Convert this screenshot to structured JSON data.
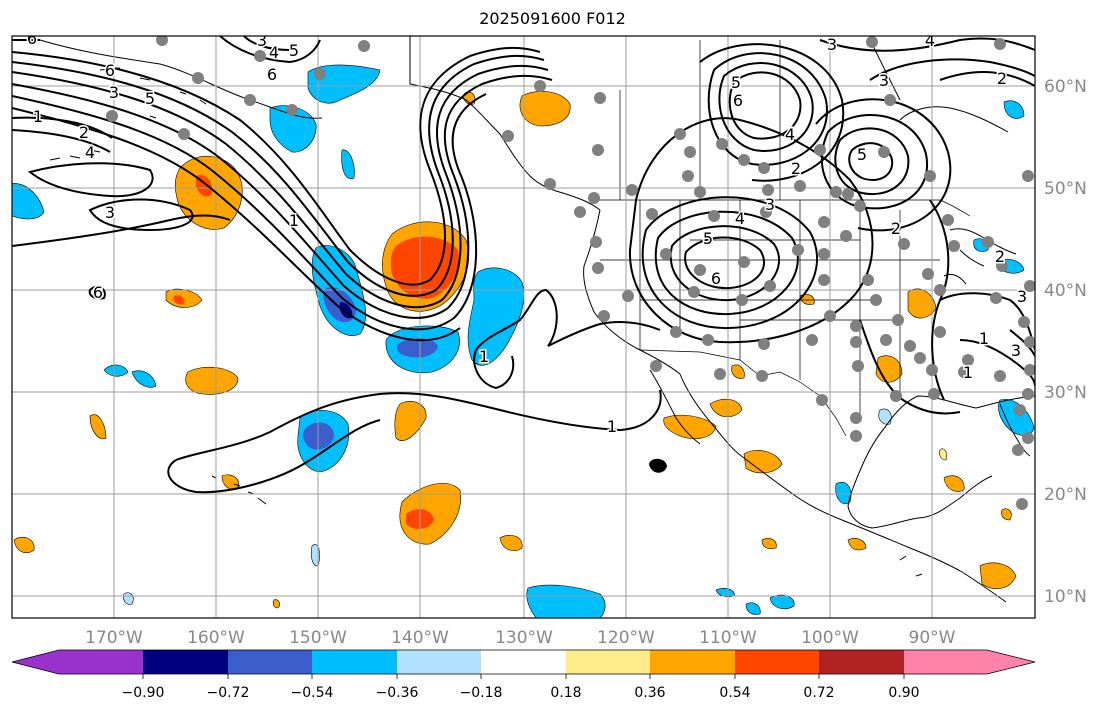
{
  "title": "2025091600 F012",
  "colors": {
    "c_neg_090": "#9932CC",
    "c_neg_072": "#000080",
    "c_neg_054": "#3A5FCD",
    "c_neg_036": "#00BFFF",
    "c_neg_018": "#B0E2FF",
    "c_zero": "#FFFFFF",
    "c_pos_018": "#FFEC8B",
    "c_pos_036": "#FFA500",
    "c_pos_054": "#FF4500",
    "c_pos_072": "#B22222",
    "c_pos_090": "#FF82AB",
    "station": "#808080",
    "grid": "#9e9e9e",
    "coast": "#000000",
    "contour": "#000000"
  },
  "chart_data": {
    "type": "map",
    "lon_ticks": [
      "170°W",
      "160°W",
      "150°W",
      "140°W",
      "130°W",
      "120°W",
      "110°W",
      "100°W",
      "90°W"
    ],
    "lat_ticks": [
      "60°N",
      "50°N",
      "40°N",
      "30°N",
      "20°N",
      "10°N"
    ],
    "colorbar": {
      "ticks": [
        "−0.90",
        "−0.72",
        "−0.54",
        "−0.36",
        "−0.18",
        "0.18",
        "0.36",
        "0.54",
        "0.72",
        "0.90"
      ],
      "extend": "both"
    },
    "contour_labels": [
      "6",
      "3",
      "5",
      "1",
      "2",
      "4",
      "3",
      "3",
      "4",
      "5",
      "6",
      "6",
      "5",
      "4",
      "3",
      "2",
      "5",
      "6",
      "3",
      "3",
      "4",
      "5",
      "6",
      "4",
      "2",
      "1",
      "1",
      "1",
      "2",
      "6",
      "3",
      "1",
      "1",
      "2",
      "3"
    ]
  }
}
